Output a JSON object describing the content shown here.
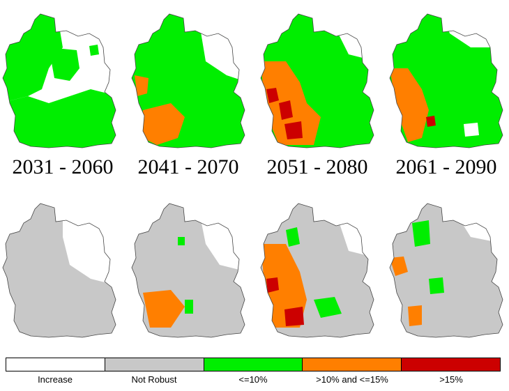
{
  "periods": [
    "2031 - 2060",
    "2041 - 2070",
    "2051 - 2080",
    "2061 - 2090"
  ],
  "legend": [
    {
      "label": "Increase",
      "color": "#ffffff"
    },
    {
      "label": "Not Robust",
      "color": "#c8c8c8"
    },
    {
      "label": "<=10%",
      "color": "#00ee00"
    },
    {
      "label": ">10% and <=15%",
      "color": "#ff7f00"
    },
    {
      "label": ">15%",
      "color": "#cc0000"
    }
  ],
  "colors": {
    "increase": "#ffffff",
    "not_robust": "#c8c8c8",
    "le10": "#00ee00",
    "gt10_le15": "#ff7f00",
    "gt15": "#cc0000",
    "border": "#444444"
  }
}
